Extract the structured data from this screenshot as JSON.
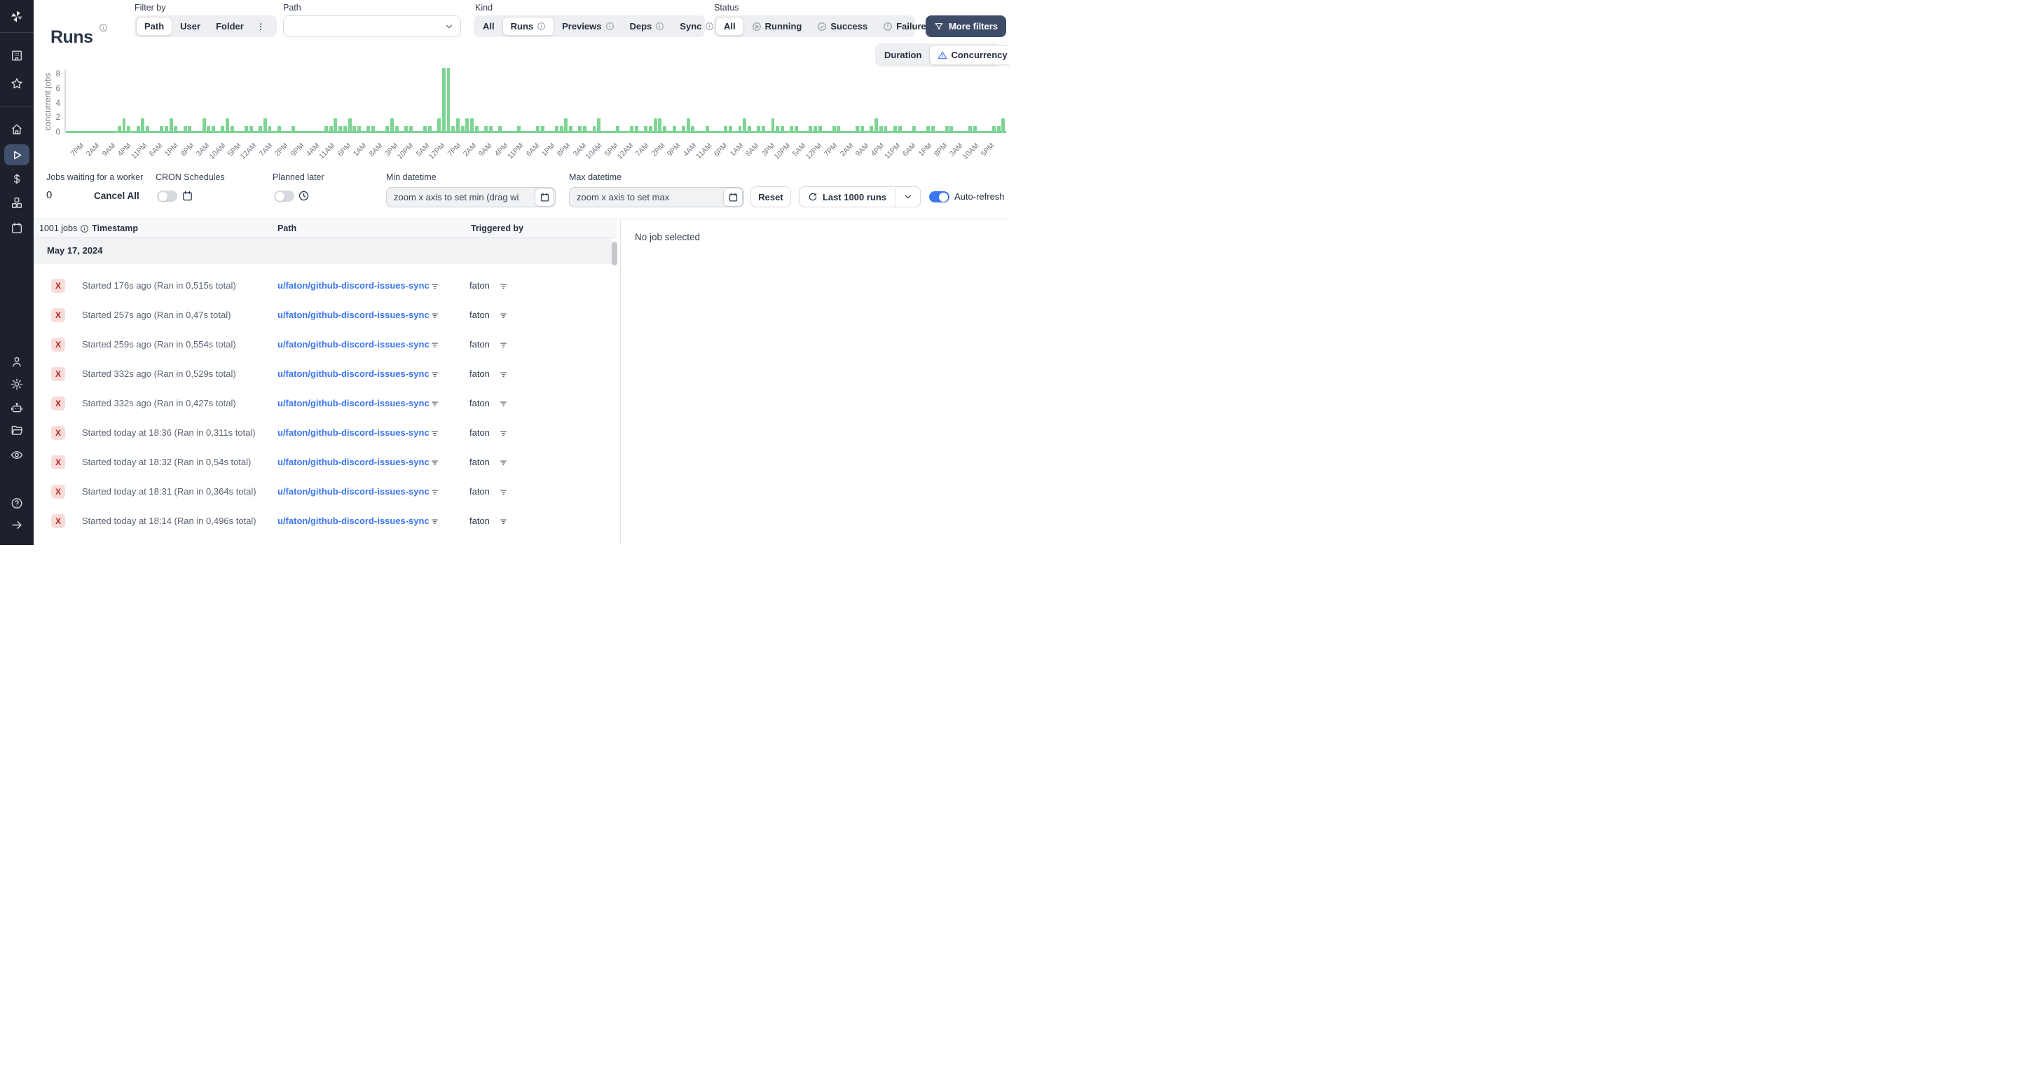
{
  "header": {
    "title": "Runs",
    "filter_by": {
      "label": "Filter by",
      "tabs": [
        {
          "label": "Path",
          "selected": true
        },
        {
          "label": "User",
          "selected": false
        },
        {
          "label": "Folder",
          "selected": false
        }
      ]
    },
    "path_filter": {
      "label": "Path",
      "value": ""
    },
    "kind": {
      "label": "Kind",
      "tabs": [
        {
          "label": "All",
          "info": false,
          "selected": false
        },
        {
          "label": "Runs",
          "info": true,
          "selected": true
        },
        {
          "label": "Previews",
          "info": true,
          "selected": false
        },
        {
          "label": "Deps",
          "info": true,
          "selected": false
        },
        {
          "label": "Sync",
          "info": true,
          "selected": false
        }
      ]
    },
    "status": {
      "label": "Status",
      "tabs": [
        {
          "label": "All",
          "icon": "none",
          "selected": true
        },
        {
          "label": "Running",
          "icon": "play-circle",
          "selected": false
        },
        {
          "label": "Success",
          "icon": "check-circle",
          "selected": false
        },
        {
          "label": "Failure",
          "icon": "alert-circle",
          "selected": false
        }
      ]
    },
    "more_filters_label": "More filters"
  },
  "chart": {
    "mode_tabs": [
      {
        "label": "Duration",
        "selected": false
      },
      {
        "label": "Concurrency",
        "selected": true
      }
    ]
  },
  "chart_data": {
    "type": "bar",
    "title": "",
    "xlabel": "",
    "ylabel": "concurrent jobs",
    "yticks": [
      0,
      2,
      4,
      6,
      8
    ],
    "ylim": [
      0,
      9
    ],
    "bar_color": "#7ed494",
    "grid": false,
    "legend": "none",
    "x_tick_labels": [
      "7PM",
      "2AM",
      "9AM",
      "4PM",
      "11PM",
      "6AM",
      "1PM",
      "8PM",
      "3AM",
      "10AM",
      "5PM",
      "12AM",
      "7AM",
      "2PM",
      "9PM",
      "4AM",
      "11AM",
      "6PM",
      "1AM",
      "8AM",
      "3PM",
      "10PM",
      "5AM",
      "12PM",
      "7PM",
      "2AM",
      "9AM",
      "4PM",
      "11PM",
      "6AM",
      "1PM",
      "8PM",
      "3AM",
      "10AM",
      "5PM",
      "12AM",
      "7AM",
      "2PM",
      "9PM",
      "4AM",
      "11AM",
      "6PM",
      "1AM",
      "8AM",
      "3PM",
      "10PM",
      "5AM",
      "12PM",
      "7PM",
      "2AM",
      "9AM",
      "4PM",
      "11PM",
      "6AM",
      "1PM",
      "8PM",
      "3AM",
      "10AM",
      "5PM"
    ],
    "values": [
      0,
      0,
      0,
      0,
      0,
      0,
      0,
      0,
      0,
      0,
      0,
      1,
      2,
      1,
      0,
      1,
      2,
      1,
      0,
      0,
      1,
      1,
      2,
      1,
      0,
      1,
      1,
      0,
      0,
      2,
      1,
      1,
      0,
      1,
      2,
      1,
      0,
      0,
      1,
      1,
      0,
      1,
      2,
      1,
      0,
      1,
      0,
      0,
      1,
      0,
      0,
      0,
      0,
      0,
      0,
      1,
      1,
      2,
      1,
      1,
      2,
      1,
      1,
      0,
      1,
      1,
      0,
      0,
      1,
      2,
      1,
      0,
      1,
      1,
      0,
      0,
      1,
      1,
      0,
      2,
      9,
      9,
      1,
      2,
      1,
      2,
      2,
      1,
      0,
      1,
      1,
      0,
      1,
      0,
      0,
      0,
      1,
      0,
      0,
      0,
      1,
      1,
      0,
      0,
      1,
      1,
      2,
      1,
      0,
      1,
      1,
      0,
      1,
      2,
      0,
      0,
      0,
      1,
      0,
      0,
      1,
      1,
      0,
      1,
      1,
      2,
      2,
      1,
      0,
      1,
      0,
      1,
      2,
      1,
      0,
      0,
      1,
      0,
      0,
      0,
      1,
      1,
      0,
      1,
      2,
      1,
      0,
      1,
      1,
      0,
      2,
      1,
      1,
      0,
      1,
      1,
      0,
      0,
      1,
      1,
      1,
      0,
      0,
      1,
      1,
      0,
      0,
      0,
      1,
      1,
      0,
      1,
      2,
      1,
      1,
      0,
      1,
      1,
      0,
      0,
      1,
      0,
      0,
      1,
      1,
      0,
      0,
      1,
      1,
      0,
      0,
      0,
      1,
      1,
      0,
      0,
      0,
      1,
      1,
      2
    ]
  },
  "controls": {
    "jobs_waiting": {
      "label": "Jobs waiting for a worker",
      "value": "0",
      "cancel_all_label": "Cancel All"
    },
    "cron": {
      "label": "CRON Schedules",
      "enabled": false
    },
    "planned": {
      "label": "Planned later",
      "enabled": false
    },
    "min_datetime": {
      "label": "Min datetime",
      "placeholder": "zoom x axis to set min (drag wi",
      "value": ""
    },
    "max_datetime": {
      "label": "Max datetime",
      "placeholder": "zoom x axis to set max",
      "value": ""
    },
    "reset_label": "Reset",
    "last_runs_label": "Last 1000 runs",
    "auto_refresh": {
      "label": "Auto-refresh",
      "enabled": true
    }
  },
  "table": {
    "jobs_count": "1001 jobs",
    "columns": {
      "timestamp": "Timestamp",
      "path": "Path",
      "triggered_by": "Triggered by"
    },
    "date_group": "May 17, 2024",
    "status_glyph": "X",
    "rows": [
      {
        "status": "failure",
        "timestamp": "Started 176s ago (Ran in 0,515s total)",
        "path": "u/faton/github-discord-issues-sync",
        "triggered_by": "faton"
      },
      {
        "status": "failure",
        "timestamp": "Started 257s ago (Ran in 0,47s total)",
        "path": "u/faton/github-discord-issues-sync",
        "triggered_by": "faton"
      },
      {
        "status": "failure",
        "timestamp": "Started 259s ago (Ran in 0,554s total)",
        "path": "u/faton/github-discord-issues-sync",
        "triggered_by": "faton"
      },
      {
        "status": "failure",
        "timestamp": "Started 332s ago (Ran in 0,529s total)",
        "path": "u/faton/github-discord-issues-sync",
        "triggered_by": "faton"
      },
      {
        "status": "failure",
        "timestamp": "Started 332s ago (Ran in 0,427s total)",
        "path": "u/faton/github-discord-issues-sync",
        "triggered_by": "faton"
      },
      {
        "status": "failure",
        "timestamp": "Started today at 18:36 (Ran in 0,311s total)",
        "path": "u/faton/github-discord-issues-sync",
        "triggered_by": "faton"
      },
      {
        "status": "failure",
        "timestamp": "Started today at 18:32 (Ran in 0,54s total)",
        "path": "u/faton/github-discord-issues-sync",
        "triggered_by": "faton"
      },
      {
        "status": "failure",
        "timestamp": "Started today at 18:31 (Ran in 0,364s total)",
        "path": "u/faton/github-discord-issues-sync",
        "triggered_by": "faton"
      },
      {
        "status": "failure",
        "timestamp": "Started today at 18:14 (Ran in 0,496s total)",
        "path": "u/faton/github-discord-issues-sync",
        "triggered_by": "faton"
      }
    ]
  },
  "detail_panel": {
    "empty_text": "No job selected"
  },
  "colors": {
    "accent_blue": "#3b76f0",
    "bar_green": "#7ed494",
    "failure_red": "#b3261e",
    "failure_bg": "#f9dcda",
    "sidebar_bg": "#1c212b",
    "dark_button": "#3e4c68"
  }
}
